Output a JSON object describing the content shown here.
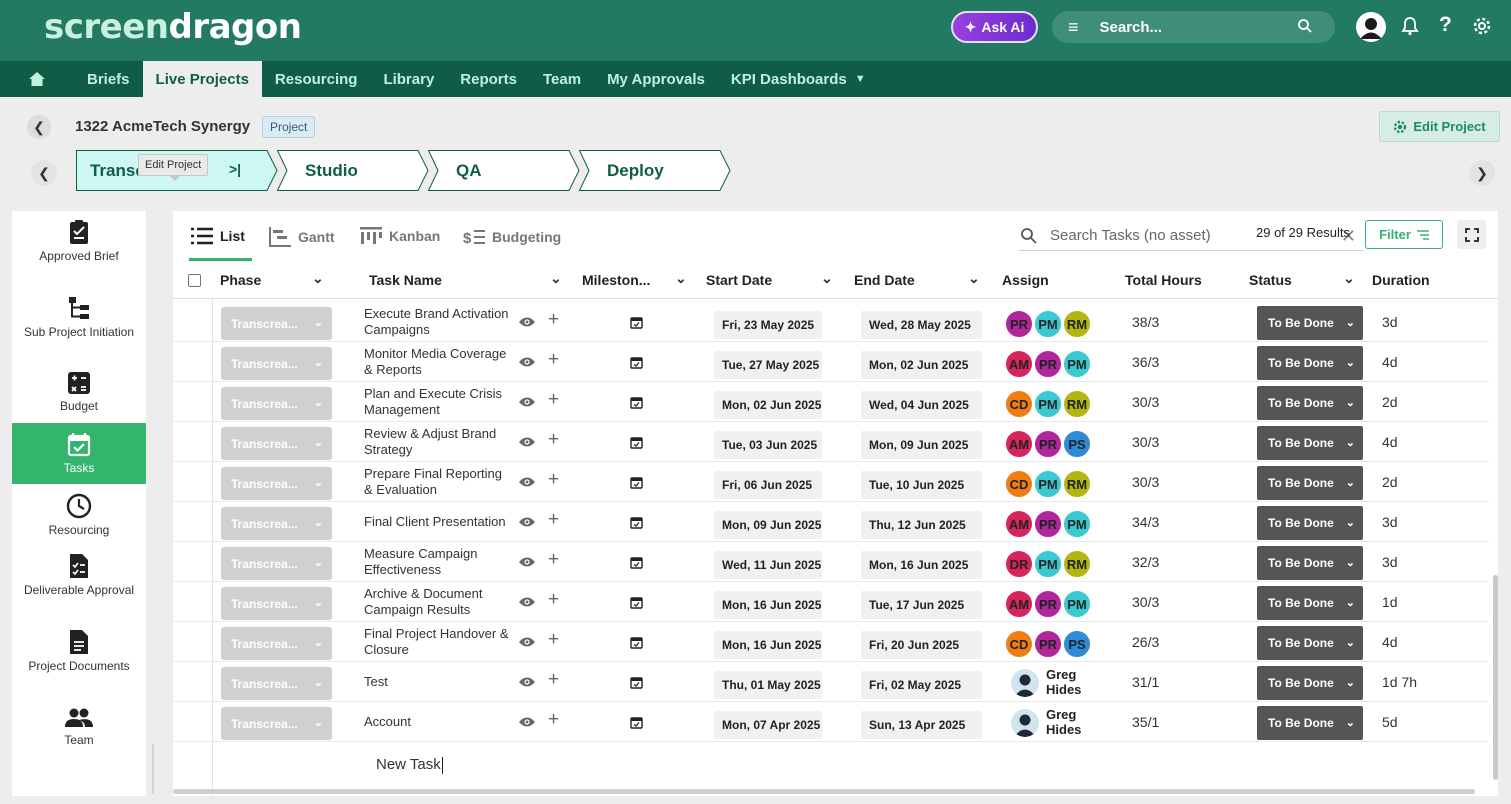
{
  "app": {
    "logo_part1": "screen",
    "logo_part2": "dragon"
  },
  "topbar": {
    "ask_ai": "Ask Ai",
    "search_placeholder": "Search...",
    "help": "?"
  },
  "nav": {
    "items": [
      "Briefs",
      "Live Projects",
      "Resourcing",
      "Library",
      "Reports",
      "Team",
      "My Approvals",
      "KPI Dashboards"
    ],
    "active": "Live Projects"
  },
  "project": {
    "title": "1322 AcmeTech Synergy",
    "badge": "Project",
    "edit_label": "Edit Project"
  },
  "stages": {
    "items": [
      "Transcreation",
      "Studio",
      "QA",
      "Deploy"
    ],
    "visible_first": "Transc",
    "tooltip": "Edit Project",
    "active_color": "#ccf7f3"
  },
  "sidebar": {
    "items": [
      {
        "label": "Approved Brief",
        "icon": "clipboard-check-icon"
      },
      {
        "label": "Sub Project Initiation",
        "icon": "hierarchy-icon"
      },
      {
        "label": "Budget",
        "icon": "calculator-icon"
      },
      {
        "label": "Tasks",
        "icon": "calendar-check-icon",
        "active": true
      },
      {
        "label": "Resourcing",
        "icon": "clock-icon"
      },
      {
        "label": "Deliverable Approval",
        "icon": "checklist-doc-icon"
      },
      {
        "label": "Project Documents",
        "icon": "document-icon"
      },
      {
        "label": "Team",
        "icon": "people-icon"
      }
    ]
  },
  "views": {
    "tabs": [
      "List",
      "Gantt",
      "Kanban",
      "Budgeting"
    ],
    "active": "List"
  },
  "task_search": {
    "placeholder": "Search Tasks (no asset)",
    "results": "29 of 29 Results",
    "filter": "Filter"
  },
  "columns": [
    "Phase",
    "Task Name",
    "Mileston...",
    "Start Date",
    "End Date",
    "Assign",
    "Total Hours",
    "Status",
    "Duration"
  ],
  "colors": {
    "brand_dark": "#0f5d47",
    "brand": "#237a63",
    "accent_green": "#33b56e",
    "status_bg": "#555555"
  },
  "avatar_colors": {
    "PR": "#b0279a",
    "PM": "#38c9d1",
    "RM": "#b3b60f",
    "AM": "#d6245c",
    "CD": "#f07d12",
    "PS": "#2f8bd6",
    "DR": "#d6245c"
  },
  "rows": [
    {
      "phase": "Transcrea...",
      "name": "Execute Brand Activation Campaigns",
      "start": "Fri, 23 May 2025",
      "end": "Wed, 28 May 2025",
      "assign": [
        "PR",
        "PM",
        "RM"
      ],
      "hours": "38/3",
      "status": "To Be Done",
      "duration": "3d"
    },
    {
      "phase": "Transcrea...",
      "name": "Monitor Media Coverage & Reports",
      "start": "Tue, 27 May 2025",
      "end": "Mon, 02 Jun 2025",
      "assign": [
        "AM",
        "PR",
        "PM"
      ],
      "hours": "36/3",
      "status": "To Be Done",
      "duration": "4d"
    },
    {
      "phase": "Transcrea...",
      "name": "Plan and Execute Crisis Management",
      "start": "Mon, 02 Jun 2025",
      "end": "Wed, 04 Jun 2025",
      "assign": [
        "CD",
        "PM",
        "RM"
      ],
      "hours": "30/3",
      "status": "To Be Done",
      "duration": "2d"
    },
    {
      "phase": "Transcrea...",
      "name": "Review & Adjust Brand Strategy",
      "start": "Tue, 03 Jun 2025",
      "end": "Mon, 09 Jun 2025",
      "assign": [
        "AM",
        "PR",
        "PS"
      ],
      "hours": "30/3",
      "status": "To Be Done",
      "duration": "4d"
    },
    {
      "phase": "Transcrea...",
      "name": "Prepare Final Reporting & Evaluation",
      "start": "Fri, 06 Jun 2025",
      "end": "Tue, 10 Jun 2025",
      "assign": [
        "CD",
        "PM",
        "RM"
      ],
      "hours": "30/3",
      "status": "To Be Done",
      "duration": "2d"
    },
    {
      "phase": "Transcrea...",
      "name": "Final Client Presentation",
      "start": "Mon, 09 Jun 2025",
      "end": "Thu, 12 Jun 2025",
      "assign": [
        "AM",
        "PR",
        "PM"
      ],
      "hours": "34/3",
      "status": "To Be Done",
      "duration": "3d"
    },
    {
      "phase": "Transcrea...",
      "name": "Measure Campaign Effectiveness",
      "start": "Wed, 11 Jun 2025",
      "end": "Mon, 16 Jun 2025",
      "assign": [
        "DR",
        "PM",
        "RM"
      ],
      "hours": "32/3",
      "status": "To Be Done",
      "duration": "3d"
    },
    {
      "phase": "Transcrea...",
      "name": "Archive & Document Campaign Results",
      "start": "Mon, 16 Jun 2025",
      "end": "Tue, 17 Jun 2025",
      "assign": [
        "AM",
        "PR",
        "PM"
      ],
      "hours": "30/3",
      "status": "To Be Done",
      "duration": "1d"
    },
    {
      "phase": "Transcrea...",
      "name": "Final Project Handover & Closure",
      "start": "Mon, 16 Jun 2025",
      "end": "Fri, 20 Jun 2025",
      "assign": [
        "CD",
        "PR",
        "PS"
      ],
      "hours": "26/3",
      "status": "To Be Done",
      "duration": "4d"
    },
    {
      "phase": "Transcrea...",
      "name": "Test",
      "start": "Thu, 01 May 2025",
      "end": "Fri, 02 May 2025",
      "person": "Greg Hides",
      "hours": "31/1",
      "status": "To Be Done",
      "duration": "1d 7h"
    },
    {
      "phase": "Transcrea...",
      "name": "Account",
      "start": "Mon, 07 Apr 2025",
      "end": "Sun, 13 Apr 2025",
      "person": "Greg Hides",
      "hours": "35/1",
      "status": "To Be Done",
      "duration": "5d"
    }
  ],
  "new_task": {
    "value": "New Task"
  }
}
